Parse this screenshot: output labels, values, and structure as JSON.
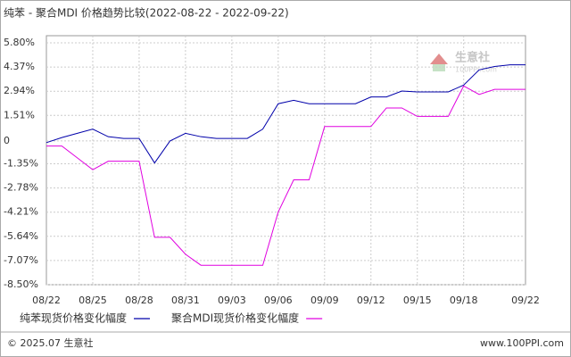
{
  "chart_data": {
    "type": "line",
    "title": "纯苯 - 聚合MDI 价格趋势比较(2022-08-22 - 2022-09-22)",
    "watermark": "生意社",
    "watermark_sub": "100PPI.com",
    "footer_left": "© 2025.07 生意社",
    "footer_right": "www.100PPI.com",
    "categories": [
      "08/22",
      null,
      null,
      "08/25",
      null,
      null,
      "08/28",
      null,
      null,
      "08/31",
      null,
      null,
      "09/03",
      null,
      null,
      "09/06",
      null,
      null,
      "09/09",
      null,
      null,
      "09/12",
      null,
      null,
      "09/15",
      null,
      null,
      "09/18",
      null,
      null,
      null,
      "09/22"
    ],
    "series": [
      {
        "name": "纯苯现货价格变化幅度",
        "color": "#0000aa",
        "values": [
          -0.1,
          0.2,
          0.45,
          0.7,
          0.25,
          0.15,
          0.15,
          -1.3,
          0,
          0.45,
          0.25,
          0.15,
          0.15,
          0.15,
          0.7,
          2.2,
          2.4,
          2.2,
          2.2,
          2.2,
          2.2,
          2.6,
          2.6,
          2.95,
          2.9,
          2.9,
          2.9,
          3.3,
          4.2,
          4.4,
          4.5,
          4.5
        ]
      },
      {
        "name": "聚合MDI现货价格变化幅度",
        "color": "#e000e0",
        "values": [
          -0.3,
          -0.3,
          -1.0,
          -1.7,
          -1.2,
          -1.2,
          -1.2,
          -5.7,
          -5.7,
          -6.7,
          -7.35,
          -7.35,
          -7.35,
          -7.35,
          -7.35,
          -4.2,
          -2.3,
          -2.3,
          0.85,
          0.85,
          0.85,
          0.85,
          1.95,
          1.95,
          1.45,
          1.45,
          1.45,
          3.25,
          2.75,
          3.05,
          3.05,
          3.05
        ]
      }
    ],
    "ylim": [
      -8.5,
      5.8
    ],
    "yticks": [
      {
        "value": 5.8,
        "label": "5.80%"
      },
      {
        "value": 4.37,
        "label": "4.37%"
      },
      {
        "value": 2.94,
        "label": "2.94%"
      },
      {
        "value": 1.51,
        "label": "1.51%"
      },
      0,
      {
        "value": -1.35,
        "label": "-1.35%"
      },
      {
        "value": -2.78,
        "label": "-2.78%"
      },
      {
        "value": -4.21,
        "label": "-4.21%"
      },
      {
        "value": -5.64,
        "label": "-5.64%"
      },
      {
        "value": -7.07,
        "label": "-7.07%"
      },
      {
        "value": -8.5,
        "label": "-8.50%"
      }
    ],
    "grid": true
  }
}
